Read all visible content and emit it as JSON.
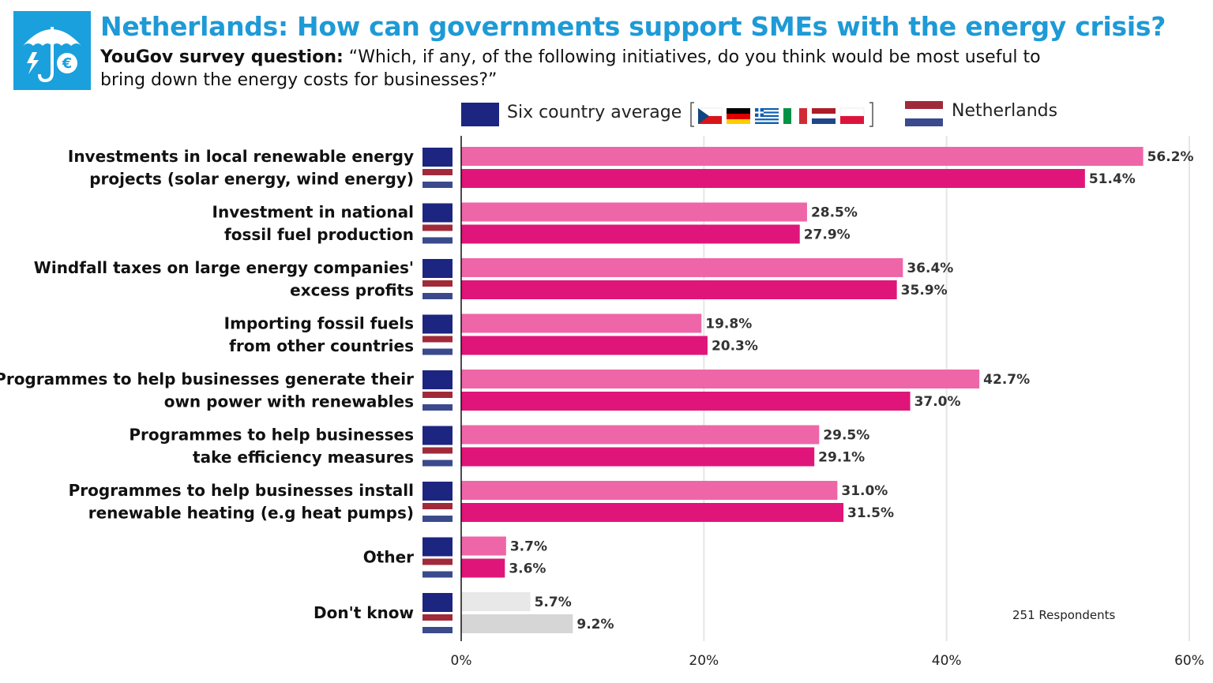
{
  "header": {
    "title": "Netherlands: How can governments support SMEs with the energy crisis?",
    "subtitle_bold": "YouGov survey question:",
    "subtitle_text": "“Which, if any, of the following initiatives, do you think would be most useful to bring down the energy costs for businesses?”",
    "logo_icon": "umbrella-euro-icon"
  },
  "legend": {
    "series1_label": "Six country average",
    "series2_label": "Netherlands",
    "flag_icons": [
      "czech-flag-icon",
      "germany-flag-icon",
      "greece-flag-icon",
      "italy-flag-icon",
      "netherlands-flag-icon",
      "poland-flag-icon"
    ]
  },
  "footer": {
    "respondents": "251 Respondents"
  },
  "colors": {
    "title": "#1e9ad6",
    "logo_bg": "#1aa0dc",
    "avg_bar": "#ee66a8",
    "nl_bar": "#e0157a",
    "avg_bar_dontknow": "#e8e8e8",
    "nl_bar_dontknow": "#d6d6d6",
    "avg_legend": "#1c2580",
    "nl_red": "#a02a3a",
    "nl_blue": "#3a4a8c"
  },
  "chart_data": {
    "type": "bar",
    "orientation": "horizontal",
    "categories": [
      [
        "Investments in local renewable energy",
        "projects (solar energy, wind energy)"
      ],
      [
        "Investment in national",
        "fossil fuel production"
      ],
      [
        "Windfall taxes on large energy companies'",
        "excess profits"
      ],
      [
        "Importing fossil fuels",
        "from other countries"
      ],
      [
        "Programmes to help businesses generate their",
        "own power with renewables"
      ],
      [
        "Programmes to help businesses",
        "take efficiency measures"
      ],
      [
        "Programmes to help businesses install",
        "renewable heating (e.g heat pumps)"
      ],
      [
        "Other"
      ],
      [
        "Don't know"
      ]
    ],
    "series": [
      {
        "name": "Six country average",
        "values": [
          56.2,
          28.5,
          36.4,
          19.8,
          42.7,
          29.5,
          31.0,
          3.7,
          5.7
        ]
      },
      {
        "name": "Netherlands",
        "values": [
          51.4,
          27.9,
          35.9,
          20.3,
          37.0,
          29.1,
          31.5,
          3.6,
          9.2
        ]
      }
    ],
    "value_labels": [
      [
        "56.2%",
        "28.5%",
        "36.4%",
        "19.8%",
        "42.7%",
        "29.5%",
        "31.0%",
        "3.7%",
        "5.7%"
      ],
      [
        "51.4%",
        "27.9%",
        "35.9%",
        "20.3%",
        "37.0%",
        "29.1%",
        "31.5%",
        "3.6%",
        "9.2%"
      ]
    ],
    "xlim": [
      0,
      60
    ],
    "xticks": [
      0,
      20,
      40,
      60
    ],
    "xtick_labels": [
      "0%",
      "20%",
      "40%",
      "60%"
    ],
    "grid": true,
    "legend_position": "top"
  }
}
